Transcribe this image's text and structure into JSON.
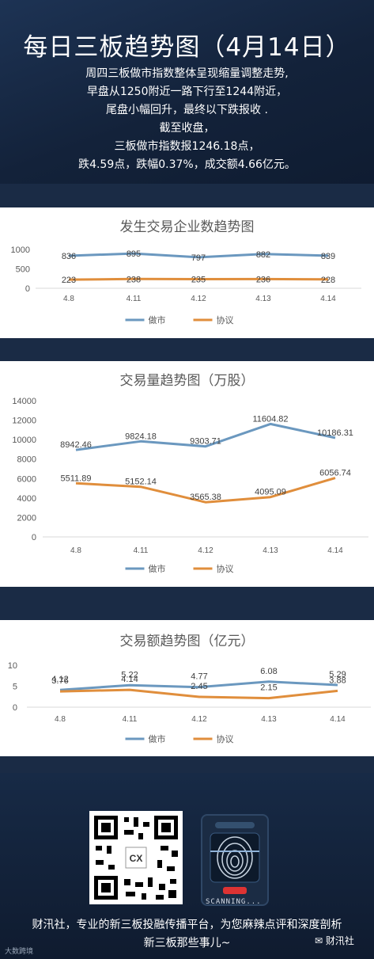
{
  "header": {
    "title": "每日三板趋势图（4月14日）",
    "summary": [
      "周四三板做市指数整体呈现缩量调整走势,",
      "早盘从1250附近一路下行至1244附近，",
      "尾盘小幅回升，最终以下跌报收 .",
      "截至收盘，",
      "三板做市指数报1246.18点，",
      "跌4.59点，跌幅0.37%，成交额4.66亿元。"
    ]
  },
  "colors": {
    "market_maker": "#6b98bf",
    "agreement": "#e08e3c",
    "background": "#13223a"
  },
  "chart_data": [
    {
      "type": "line",
      "title": "发生交易企业数趋势图",
      "categories": [
        "4.8",
        "4.11",
        "4.12",
        "4.13",
        "4.14"
      ],
      "series": [
        {
          "name": "做市",
          "values": [
            836,
            895,
            797,
            882,
            839
          ],
          "labels": [
            "836",
            "895",
            "797",
            "882",
            "839"
          ]
        },
        {
          "name": "协议",
          "values": [
            223,
            238,
            235,
            236,
            228
          ],
          "labels": [
            "223",
            "238",
            "235",
            "236",
            "228"
          ]
        }
      ],
      "yticks": [
        "0",
        "500",
        "1000"
      ],
      "ylim": [
        0,
        1000
      ],
      "legend": "bottom",
      "grid": false
    },
    {
      "type": "line",
      "title": "交易量趋势图（万股）",
      "categories": [
        "4.8",
        "4.11",
        "4.12",
        "4.13",
        "4.14"
      ],
      "series": [
        {
          "name": "做市",
          "values": [
            8942.46,
            9824.18,
            9303.71,
            11604.82,
            10186.31
          ],
          "labels": [
            "8942.46",
            "9824.18",
            "9303.71",
            "11604.82",
            "10186.31"
          ]
        },
        {
          "name": "协议",
          "values": [
            5511.89,
            5152.14,
            3565.38,
            4095.09,
            6056.74
          ],
          "labels": [
            "5511.89",
            "5152.14",
            "3565.38",
            "4095.09",
            "6056.74"
          ]
        }
      ],
      "yticks": [
        "0",
        "2000",
        "4000",
        "6000",
        "8000",
        "10000",
        "12000",
        "14000"
      ],
      "ylim": [
        0,
        14000
      ],
      "legend": "bottom",
      "grid": false
    },
    {
      "type": "line",
      "title": "交易额趋势图（亿元）",
      "categories": [
        "4.8",
        "4.11",
        "4.12",
        "4.13",
        "4.14"
      ],
      "series": [
        {
          "name": "做市",
          "values": [
            4.12,
            5.22,
            4.77,
            6.08,
            5.29
          ],
          "labels": [
            "4.12",
            "5.22",
            "4.77",
            "6.08",
            "5.29"
          ]
        },
        {
          "name": "协议",
          "values": [
            3.76,
            4.14,
            2.45,
            2.15,
            3.88
          ],
          "labels": [
            "3.76",
            "4.14",
            "2.45",
            "2.15",
            "3.88"
          ]
        }
      ],
      "yticks": [
        "0",
        "5",
        "10"
      ],
      "ylim": [
        0,
        10
      ],
      "legend": "bottom",
      "grid": false
    }
  ],
  "footer": {
    "qr_label": "CX",
    "scan_label": "SCANNING...",
    "text_lines": [
      "财汛社，专业的新三板投融传播平台，为您麻辣点评和深度剖析",
      "新三板那些事儿~"
    ],
    "watermark_left": "大数跨境",
    "watermark_right": "财汛社"
  },
  "icons": {
    "wechat": "wechat-icon",
    "fingerprint": "fingerprint-icon",
    "qr": "qr-code-icon"
  }
}
